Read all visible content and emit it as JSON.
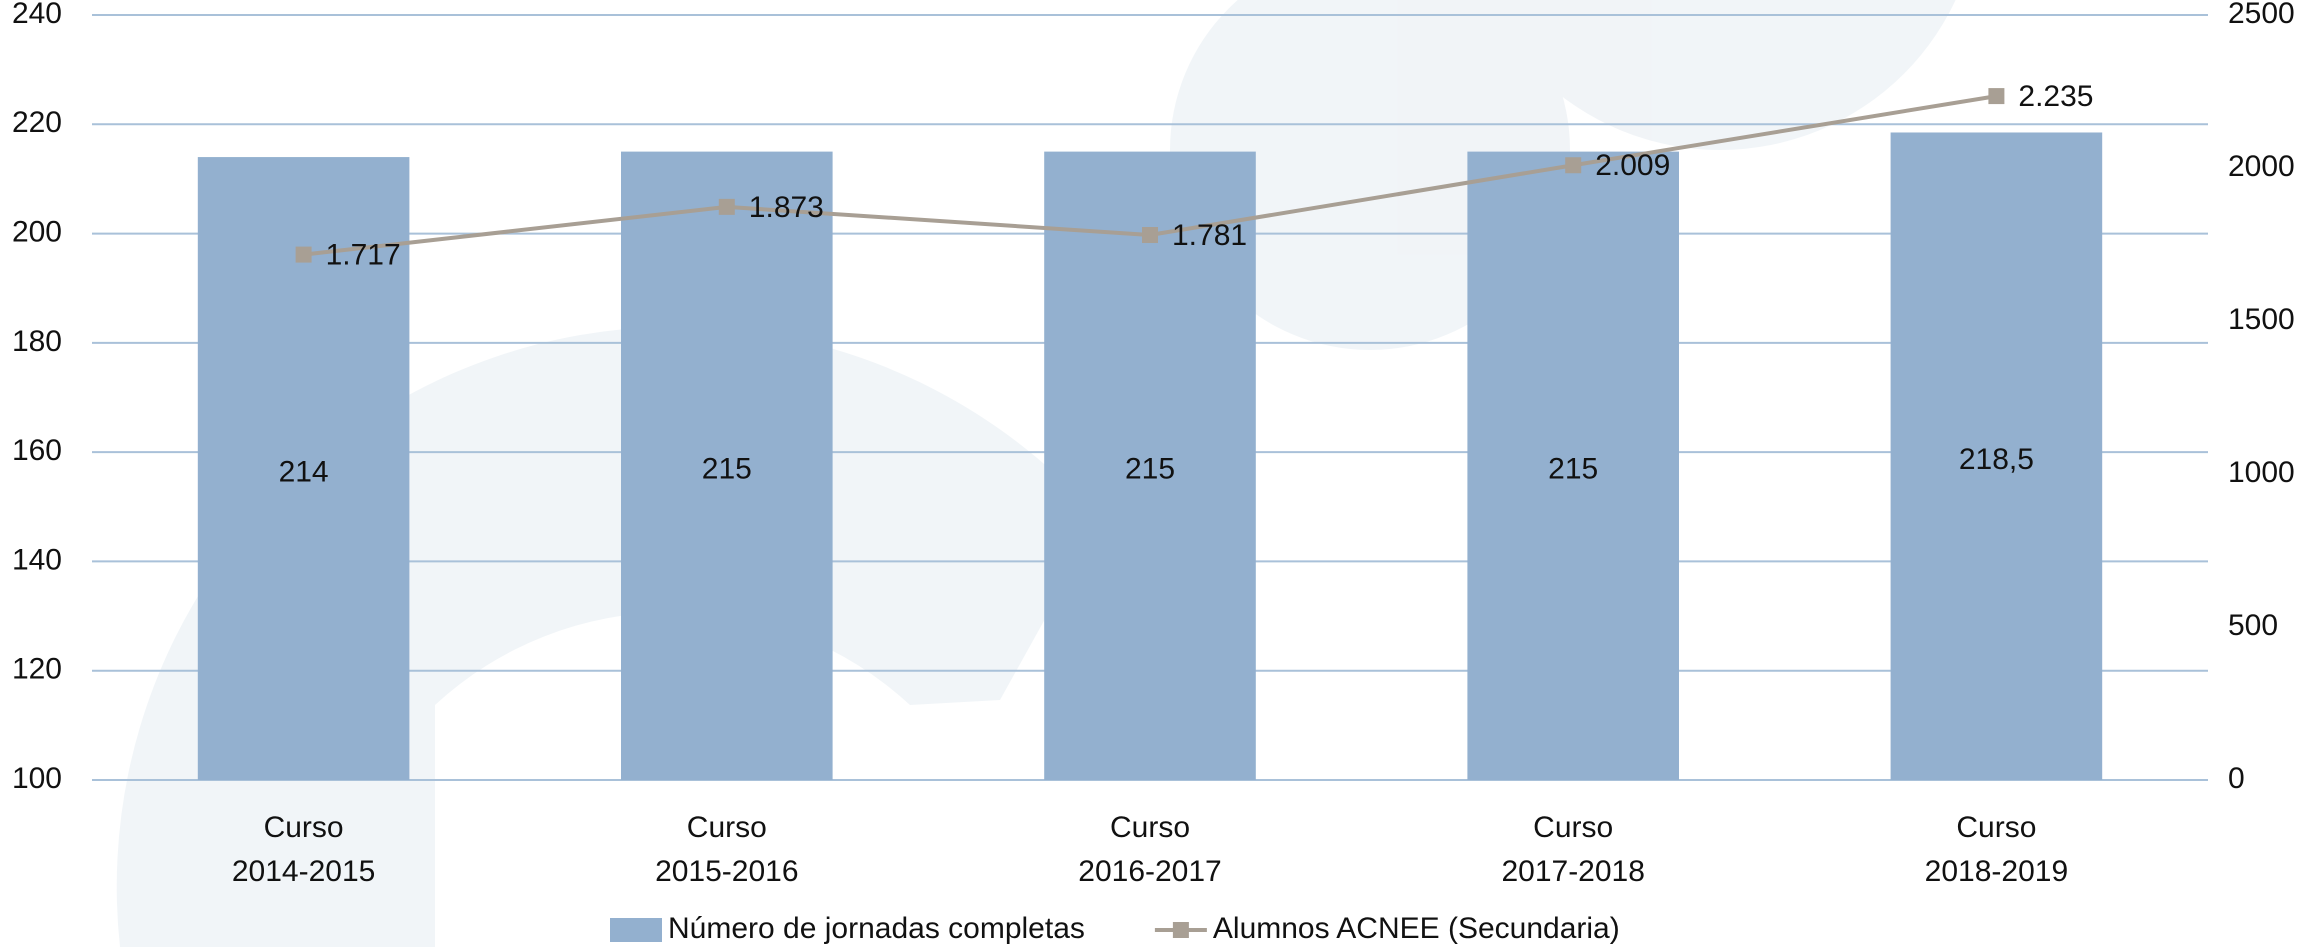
{
  "chart_data": {
    "type": "bar",
    "categories": [
      "Curso\n2014-2015",
      "Curso\n2015-2016",
      "Curso\n2016-2017",
      "Curso\n2017-2018",
      "Curso\n2018-2019"
    ],
    "series": [
      {
        "name": "Número de jornadas completas",
        "type": "bar",
        "color": "#93b0cf",
        "values": [
          214,
          215,
          215,
          215,
          218.5
        ],
        "value_labels": [
          "214",
          "215",
          "215",
          "215",
          "218,5"
        ]
      },
      {
        "name": "Alumnos ACNEE (Secundaria)",
        "type": "line",
        "axis": "y2",
        "color": "#a89f94",
        "values": [
          1717,
          1873,
          1781,
          2009,
          2235
        ],
        "value_labels": [
          "1.717",
          "1.873",
          "1.781",
          "2.009",
          "2.235"
        ]
      }
    ],
    "ylim": [
      100,
      240
    ],
    "yticks": [
      100,
      120,
      140,
      160,
      180,
      200,
      220,
      240
    ],
    "y2lim": [
      0,
      2500
    ],
    "y2ticks": [
      0,
      500,
      1000,
      1500,
      2000,
      2500
    ],
    "grid": true,
    "legend": "bottom"
  }
}
